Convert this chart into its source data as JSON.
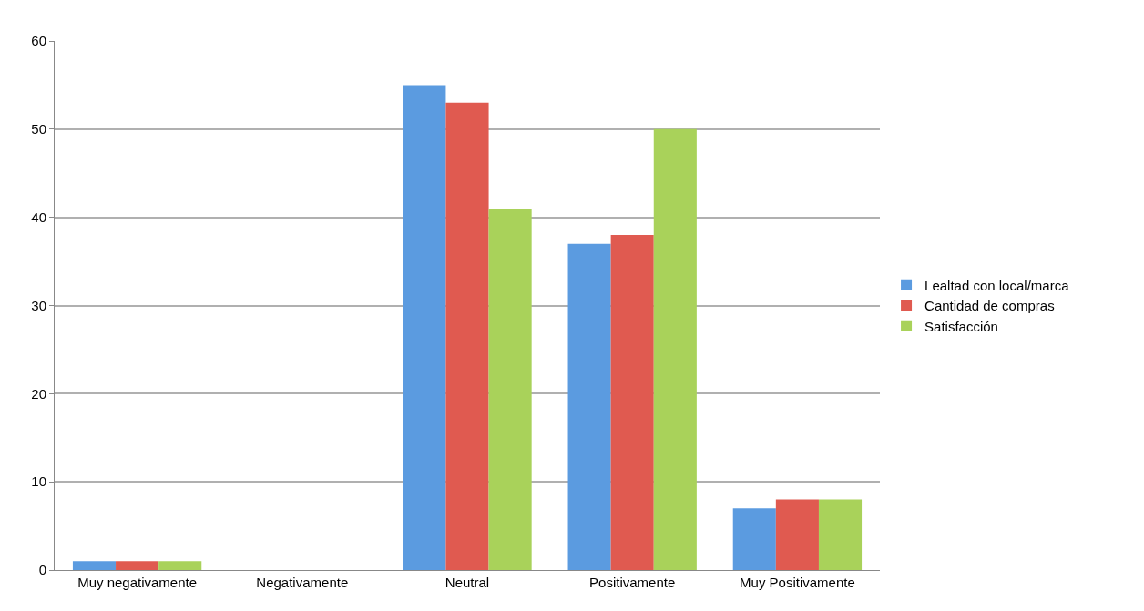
{
  "chart_data": {
    "type": "bar",
    "categories": [
      "Muy negativamente",
      "Negativamente",
      "Neutral",
      "Positivamente",
      "Muy Positivamente"
    ],
    "series": [
      {
        "name": "Lealtad con local/marca",
        "color": "#5b9be0",
        "values": [
          1,
          0,
          55,
          37,
          7
        ]
      },
      {
        "name": "Cantidad de compras",
        "color": "#e05a50",
        "values": [
          1,
          0,
          53,
          38,
          8
        ]
      },
      {
        "name": "Satisfacción",
        "color": "#a9d25a",
        "values": [
          1,
          0,
          41,
          50,
          8
        ]
      }
    ],
    "ylim": [
      0,
      60
    ],
    "yticks": [
      0,
      10,
      20,
      30,
      40,
      50,
      60
    ],
    "grid": "y",
    "legend": "right"
  }
}
